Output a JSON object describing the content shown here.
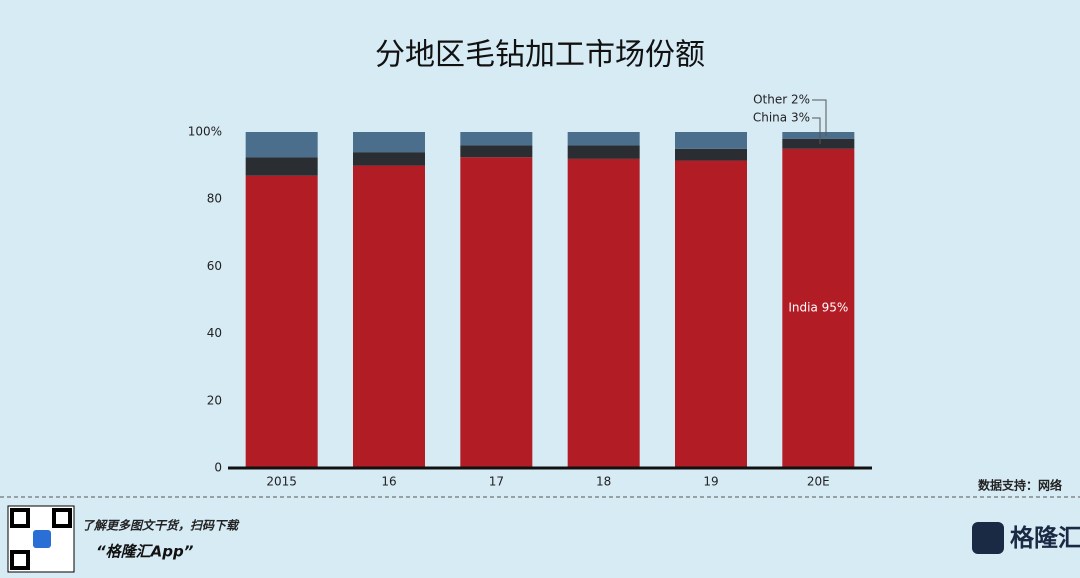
{
  "chart_data": {
    "type": "bar",
    "stacked": true,
    "title": "分地区毛钻加工市场份额",
    "categories": [
      "2015",
      "16",
      "17",
      "18",
      "19",
      "20E"
    ],
    "series": [
      {
        "name": "India",
        "color": "#b11c25",
        "values": [
          87,
          90,
          92.5,
          92,
          91.5,
          95
        ]
      },
      {
        "name": "China",
        "color": "#2a2d31",
        "values": [
          5.5,
          4,
          3.5,
          4,
          3.5,
          3
        ]
      },
      {
        "name": "Other",
        "color": "#4a6e8b",
        "values": [
          7.5,
          6,
          4,
          4,
          5,
          2
        ]
      }
    ],
    "ylim": [
      0,
      100
    ],
    "yticks": [
      0,
      20,
      40,
      60,
      80,
      {
        "value": 100,
        "label": "100%"
      }
    ],
    "annotations": [
      "Other 2%",
      "China 3%",
      "India 95%"
    ],
    "source": "数据支持：网络",
    "footer": {
      "promo": "了解更多图文干货，扫码下载",
      "app": "“格隆汇App”",
      "logo": "格隆汇"
    }
  }
}
